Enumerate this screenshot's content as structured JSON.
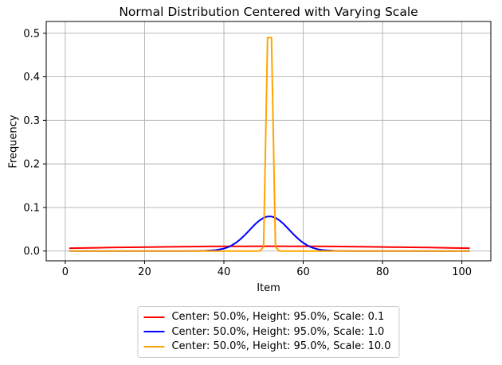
{
  "chart_data": {
    "type": "line",
    "title": "Normal Distribution Centered with Varying Scale",
    "xlabel": "Item",
    "ylabel": "Frequency",
    "xlim": [
      -4.8,
      107.3
    ],
    "ylim": [
      -0.0225,
      0.527
    ],
    "xticks": [
      0,
      20,
      40,
      60,
      80,
      100
    ],
    "xticklabels": [
      "0",
      "20",
      "40",
      "60",
      "80",
      "100"
    ],
    "yticks": [
      0.0,
      0.1,
      0.2,
      0.3,
      0.4,
      0.5
    ],
    "yticklabels": [
      "0.0",
      "0.1",
      "0.2",
      "0.3",
      "0.4",
      "0.5"
    ],
    "grid": true,
    "grid_color": "#b0b0b0",
    "spine_color": "#000000",
    "legend_position": "below-center",
    "series": [
      {
        "name": "Center: 50.0%, Height: 95.0%, Scale: 0.1",
        "color": "#ff0000",
        "x": [
          1,
          6,
          11,
          16,
          21,
          26,
          31,
          36,
          41,
          46,
          51,
          52,
          57,
          62,
          67,
          72,
          77,
          82,
          87,
          92,
          97,
          102
        ],
        "y": [
          0.0066,
          0.0073,
          0.0079,
          0.0086,
          0.0091,
          0.0097,
          0.0101,
          0.0105,
          0.0108,
          0.0109,
          0.011,
          0.011,
          0.0109,
          0.0108,
          0.0105,
          0.0101,
          0.0097,
          0.0091,
          0.0086,
          0.0079,
          0.0073,
          0.0066
        ]
      },
      {
        "name": "Center: 50.0%, Height: 95.0%, Scale: 1.0",
        "color": "#0000ff",
        "x": [
          1,
          10,
          20,
          30,
          35,
          38,
          40,
          41,
          42,
          43,
          44,
          45,
          46,
          47,
          48,
          49,
          50,
          51,
          52,
          53,
          54,
          55,
          56,
          57,
          58,
          59,
          60,
          61,
          62,
          63,
          64,
          65,
          68,
          72,
          80,
          90,
          102
        ],
        "y": [
          0,
          0,
          0,
          0,
          0.0003,
          0.0021,
          0.0057,
          0.0088,
          0.0131,
          0.0188,
          0.0259,
          0.0343,
          0.0436,
          0.0532,
          0.0625,
          0.0704,
          0.0763,
          0.0794,
          0.0794,
          0.0763,
          0.0704,
          0.0625,
          0.0532,
          0.0436,
          0.0343,
          0.0259,
          0.0188,
          0.0131,
          0.0088,
          0.0057,
          0.0035,
          0.0021,
          0.0003,
          0,
          0,
          0,
          0
        ]
      },
      {
        "name": "Center: 50.0%, Height: 95.0%, Scale: 10.0",
        "color": "#ffa500",
        "x": [
          1,
          40,
          48,
          49,
          50,
          51,
          52,
          53,
          54,
          55,
          60,
          102
        ],
        "y": [
          0,
          0,
          0,
          0.0002,
          0.0089,
          0.49,
          0.49,
          0.0089,
          0.0002,
          0,
          0,
          0
        ]
      }
    ]
  }
}
